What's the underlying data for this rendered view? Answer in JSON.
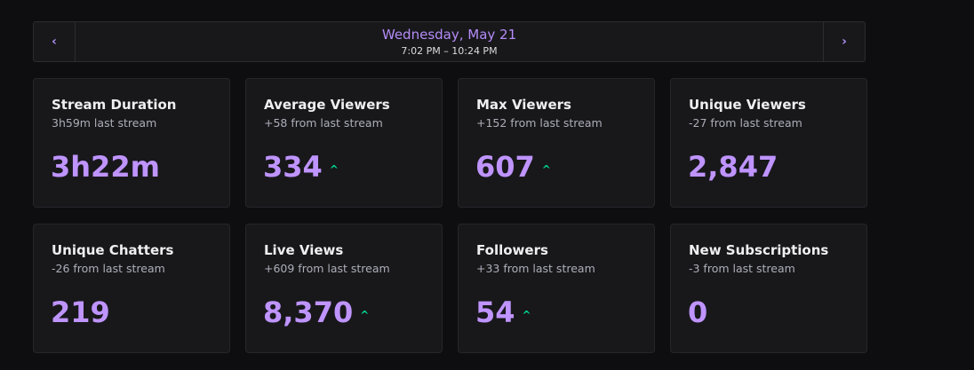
{
  "header": {
    "date": "Wednesday, May 21",
    "time_range": "7:02 PM – 10:24 PM"
  },
  "cards": [
    {
      "title": "Stream Duration",
      "subtitle": "3h59m last stream",
      "value": "3h22m"
    },
    {
      "title": "Average Viewers",
      "subtitle": "+58 from last stream",
      "value": "334"
    },
    {
      "title": "Max Viewers",
      "subtitle": "+152 from last stream",
      "value": "607"
    },
    {
      "title": "Unique Viewers",
      "subtitle": "-27 from last stream",
      "value": "2,847"
    },
    {
      "title": "Unique Chatters",
      "subtitle": "-26 from last stream",
      "value": "219"
    },
    {
      "title": "Live Views",
      "subtitle": "+609 from last stream",
      "value": "8,370"
    },
    {
      "title": "Followers",
      "subtitle": "+33 from last stream",
      "value": "54"
    },
    {
      "title": "New Subscriptions",
      "subtitle": "-3 from last stream",
      "value": "0"
    }
  ]
}
